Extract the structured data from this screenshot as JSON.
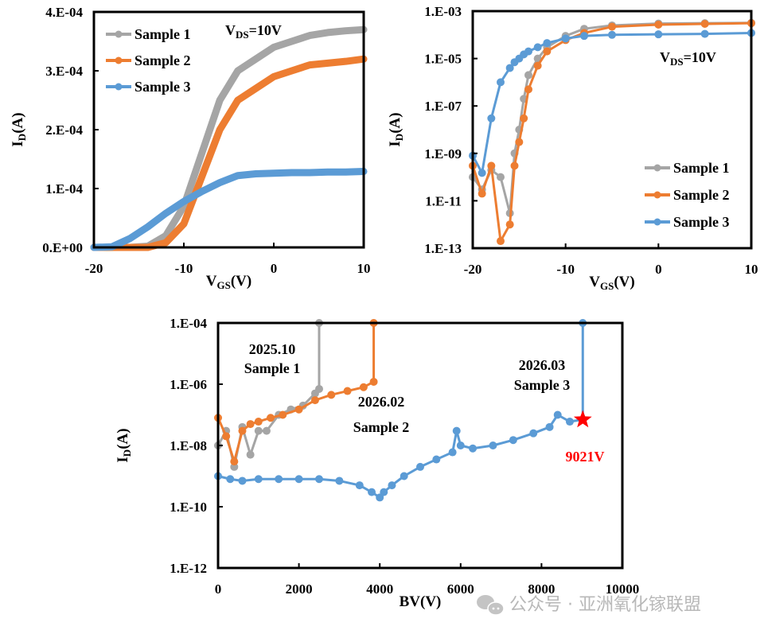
{
  "colors": {
    "sample1": "#a5a5a5",
    "sample2": "#ed7d31",
    "sample3": "#5b9bd5",
    "star": "#ff0000",
    "watermark": "#b8b8b8"
  },
  "watermark": {
    "icon": "wechat-icon",
    "text": "公众号 · 亚洲氧化镓联盟"
  },
  "chart_data": [
    {
      "type": "line",
      "title": "",
      "xlabel": "V_GS(V)",
      "ylabel": "I_D(A)",
      "xlim": [
        -20,
        10
      ],
      "ylim": [
        0,
        0.0004
      ],
      "xticks": [
        "-20",
        "-10",
        "0",
        "10"
      ],
      "yticks": [
        "0.E+00",
        "1.E-04",
        "2.E-04",
        "3.E-04",
        "4.E-04"
      ],
      "annotation": "V_DS=10V",
      "legend": "top-left",
      "x": [
        -20,
        -18,
        -16,
        -14,
        -12,
        -10,
        -8,
        -6,
        -4,
        -2,
        0,
        2,
        4,
        6,
        8,
        10
      ],
      "series": [
        {
          "name": "Sample 1",
          "values": [
            0,
            0,
            0,
            2e-06,
            2e-05,
            7e-05,
            0.00016,
            0.00025,
            0.0003,
            0.00032,
            0.00034,
            0.00035,
            0.00036,
            0.000365,
            0.000368,
            0.00037
          ]
        },
        {
          "name": "Sample 2",
          "values": [
            0,
            0,
            0,
            0,
            8e-06,
            4e-05,
            0.00012,
            0.0002,
            0.00025,
            0.00027,
            0.00029,
            0.0003,
            0.00031,
            0.000313,
            0.000316,
            0.00032
          ]
        },
        {
          "name": "Sample 3",
          "values": [
            0,
            1e-06,
            1.5e-05,
            3.5e-05,
            5.8e-05,
            7.8e-05,
            9.5e-05,
            0.00011,
            0.000122,
            0.000125,
            0.000126,
            0.000127,
            0.000127,
            0.000128,
            0.000128,
            0.000129
          ]
        }
      ]
    },
    {
      "type": "line",
      "title": "",
      "xlabel": "V_GS(V)",
      "ylabel": "I_D(A)",
      "yscale": "log",
      "xlim": [
        -20,
        10
      ],
      "ylim": [
        1e-13,
        0.001
      ],
      "xticks": [
        "-20",
        "-10",
        "0",
        "10"
      ],
      "yticks": [
        "1.E-13",
        "1.E-11",
        "1.E-09",
        "1.E-07",
        "1.E-05",
        "1.E-03"
      ],
      "annotation": "V_DS=10V",
      "legend": "bottom-right",
      "x": [
        -20,
        -19,
        -18,
        -17,
        -16,
        -15.5,
        -15,
        -14.5,
        -14,
        -13,
        -12,
        -10,
        -8,
        -5,
        0,
        5,
        10
      ],
      "series": [
        {
          "name": "Sample 1",
          "values": [
            1e-10,
            3e-11,
            2e-10,
            1e-10,
            3e-12,
            1e-09,
            1e-08,
            2e-07,
            2e-06,
            1e-05,
            3e-05,
            9e-05,
            0.00018,
            0.00025,
            0.0003,
            0.00031,
            0.00032
          ]
        },
        {
          "name": "Sample 2",
          "values": [
            3e-10,
            2e-11,
            3e-10,
            2e-13,
            1e-12,
            3e-10,
            3e-09,
            3e-08,
            5e-07,
            5e-06,
            2e-05,
            6e-05,
            0.00012,
            0.00022,
            0.00027,
            0.00029,
            0.00031
          ]
        },
        {
          "name": "Sample 3",
          "values": [
            8e-10,
            1.5e-10,
            3e-08,
            1e-06,
            4e-06,
            7e-06,
            1e-05,
            1.5e-05,
            2e-05,
            3e-05,
            4.5e-05,
            7e-05,
            9e-05,
            0.0001,
            0.000105,
            0.00011,
            0.00012
          ]
        }
      ]
    },
    {
      "type": "line",
      "title": "",
      "xlabel": "BV(V)",
      "ylabel": "I_D(A)",
      "yscale": "log",
      "xlim": [
        0,
        10000
      ],
      "ylim": [
        1e-12,
        0.0001
      ],
      "xticks": [
        "0",
        "2000",
        "4000",
        "6000",
        "8000",
        "10000"
      ],
      "yticks": [
        "1.E-12",
        "1.E-10",
        "1.E-08",
        "1.E-06",
        "1.E-04"
      ],
      "annotations": [
        {
          "line1": "2025.10",
          "line2": "Sample 1"
        },
        {
          "line1": "2026.02",
          "line2": "Sample 2"
        },
        {
          "line1": "2026.03",
          "line2": "Sample 3"
        },
        {
          "text": "9021V",
          "x": 9021,
          "y": 7e-08,
          "marker": "star"
        }
      ],
      "series": [
        {
          "name": "Sample 1",
          "x": [
            0,
            200,
            400,
            600,
            800,
            1000,
            1200,
            1500,
            1800,
            2100,
            2400,
            2500,
            2500
          ],
          "values": [
            1e-08,
            3e-08,
            2e-09,
            4e-08,
            5e-09,
            3e-08,
            3e-08,
            1e-07,
            1.5e-07,
            2e-07,
            5e-07,
            7e-07,
            0.0001
          ]
        },
        {
          "name": "Sample 2",
          "x": [
            0,
            200,
            400,
            600,
            800,
            1000,
            1300,
            1600,
            2000,
            2400,
            2800,
            3200,
            3600,
            3850,
            3850
          ],
          "values": [
            8e-08,
            2e-08,
            3e-09,
            3e-08,
            5e-08,
            6e-08,
            8e-08,
            1e-07,
            1.5e-07,
            3e-07,
            4.5e-07,
            6e-07,
            8e-07,
            1.2e-06,
            0.0001
          ]
        },
        {
          "name": "Sample 3",
          "x": [
            0,
            300,
            600,
            1000,
            1500,
            2000,
            2500,
            3000,
            3500,
            3800,
            4000,
            4100,
            4300,
            4600,
            5000,
            5400,
            5800,
            5900,
            6000,
            6300,
            6800,
            7300,
            7800,
            8200,
            8400,
            8700,
            9021,
            9021
          ],
          "values": [
            1e-09,
            8e-10,
            7e-10,
            8e-10,
            8e-10,
            8e-10,
            8e-10,
            7e-10,
            5e-10,
            3e-10,
            2e-10,
            3e-10,
            5e-10,
            1e-09,
            2e-09,
            3.5e-09,
            6e-09,
            3e-08,
            1e-08,
            8e-09,
            1e-08,
            1.5e-08,
            2.5e-08,
            4e-08,
            1e-07,
            6e-08,
            7e-08,
            0.0001
          ]
        }
      ]
    }
  ]
}
